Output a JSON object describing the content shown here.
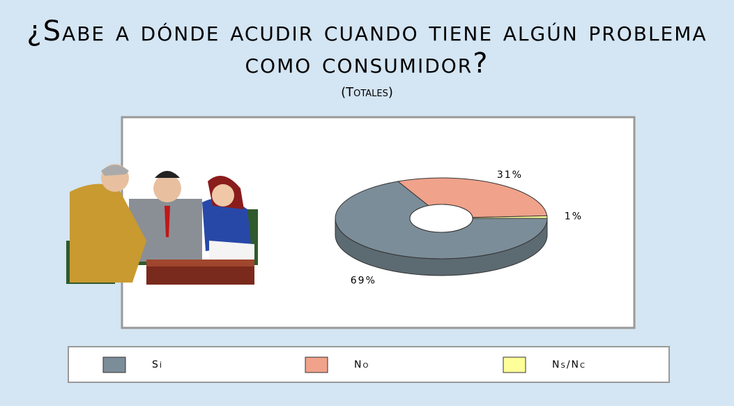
{
  "chart_data": {
    "type": "pie3d",
    "title": "¿Sabe a dónde acudir cuando tiene algún problema como consumidor?",
    "subtitle": "(Totales)",
    "categories": [
      "Sí",
      "No",
      "Ns/Nc"
    ],
    "values": [
      69,
      31,
      1
    ],
    "value_labels": [
      "69%",
      "31%",
      "1%"
    ],
    "colors": [
      "#7b8d98",
      "#f0a28b",
      "#ffff99"
    ]
  }
}
